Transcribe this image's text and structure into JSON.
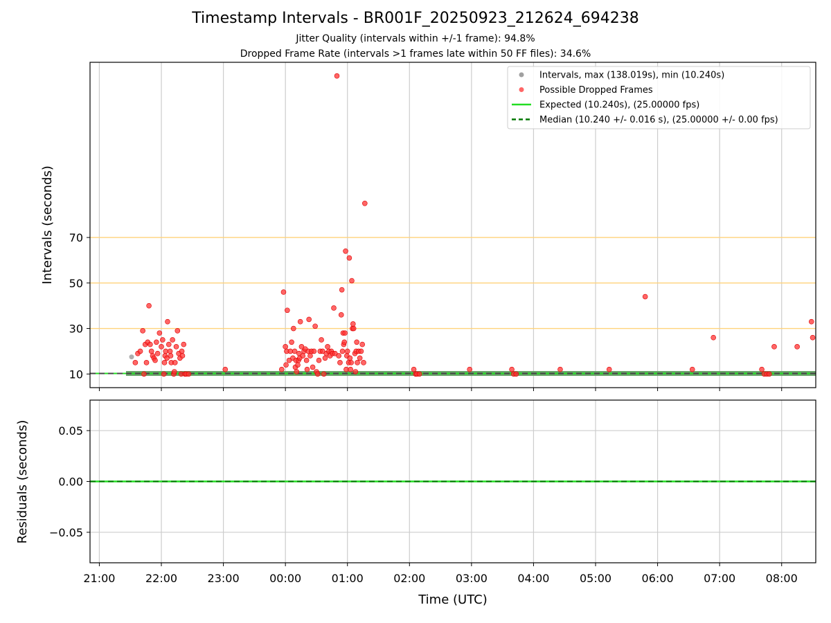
{
  "title": "Timestamp Intervals - BR001F_20250923_212624_694238",
  "subtitle_1": "Jitter Quality (intervals within +/-1 frame): 94.8%",
  "subtitle_2": "Dropped Frame Rate (intervals >1 frames late within 50 FF files): 34.6%",
  "colors": {
    "interval": "#a0a0a0",
    "dropped": "#ff3333",
    "expected": "#22dd22",
    "median": "#007700",
    "threshold": "#ffd27a",
    "grid": "#cccccc"
  },
  "chart_data": [
    {
      "type": "scatter",
      "xlabel": "",
      "ylabel": "Intervals (seconds)",
      "xlim": [
        -0.15,
        11.55
      ],
      "ylim": [
        4,
        147
      ],
      "yticks": [
        10,
        30,
        50,
        70
      ],
      "threshold_lines": [
        30,
        50,
        70
      ],
      "legend_position": "top-right",
      "legend": [
        {
          "label": "Intervals, max (138.019s), min (10.240s)",
          "kind": "gray-dot"
        },
        {
          "label": "Possible Dropped Frames",
          "kind": "red-dot"
        },
        {
          "label": "Expected (10.240s), (25.00000 fps)",
          "kind": "solid-line"
        },
        {
          "label": "Median (10.240 +/- 0.016 s), (25.00000 +/- 0.00 fps)",
          "kind": "dashed-line"
        }
      ],
      "expected": 10.24,
      "median": 10.24,
      "normal_interval_range_hours": [
        0.43,
        11.55
      ],
      "series": [
        {
          "name": "Intervals",
          "points": [
            [
              0.52,
              17.5
            ]
          ]
        },
        {
          "name": "Possible Dropped Frames",
          "points": [
            [
              0.58,
              15
            ],
            [
              0.62,
              19
            ],
            [
              0.66,
              20
            ],
            [
              0.7,
              29
            ],
            [
              0.72,
              10
            ],
            [
              0.74,
              23
            ],
            [
              0.76,
              15
            ],
            [
              0.78,
              24
            ],
            [
              0.8,
              40
            ],
            [
              0.82,
              23
            ],
            [
              0.84,
              20
            ],
            [
              0.86,
              18
            ],
            [
              0.88,
              17
            ],
            [
              0.9,
              16
            ],
            [
              0.92,
              24
            ],
            [
              0.94,
              19
            ],
            [
              0.97,
              28
            ],
            [
              1.0,
              22
            ],
            [
              1.02,
              25
            ],
            [
              1.04,
              10
            ],
            [
              1.05,
              15
            ],
            [
              1.06,
              18
            ],
            [
              1.07,
              20
            ],
            [
              1.09,
              17
            ],
            [
              1.1,
              33
            ],
            [
              1.12,
              23
            ],
            [
              1.14,
              20
            ],
            [
              1.15,
              18
            ],
            [
              1.16,
              15
            ],
            [
              1.18,
              25
            ],
            [
              1.2,
              10
            ],
            [
              1.21,
              11
            ],
            [
              1.22,
              15
            ],
            [
              1.24,
              22
            ],
            [
              1.26,
              29
            ],
            [
              1.28,
              19
            ],
            [
              1.3,
              17
            ],
            [
              1.32,
              10
            ],
            [
              1.33,
              20
            ],
            [
              1.34,
              18
            ],
            [
              1.36,
              23
            ],
            [
              1.38,
              10
            ],
            [
              1.4,
              10
            ],
            [
              1.44,
              10
            ],
            [
              2.03,
              12
            ],
            [
              2.94,
              12
            ],
            [
              2.97,
              46
            ],
            [
              3.0,
              22
            ],
            [
              3.01,
              14
            ],
            [
              3.02,
              20
            ],
            [
              3.03,
              38
            ],
            [
              3.06,
              16
            ],
            [
              3.08,
              20
            ],
            [
              3.1,
              24
            ],
            [
              3.12,
              17
            ],
            [
              3.13,
              30
            ],
            [
              3.15,
              20
            ],
            [
              3.16,
              13
            ],
            [
              3.17,
              16
            ],
            [
              3.18,
              11
            ],
            [
              3.2,
              14
            ],
            [
              3.21,
              16
            ],
            [
              3.22,
              19
            ],
            [
              3.23,
              17
            ],
            [
              3.24,
              33
            ],
            [
              3.26,
              22
            ],
            [
              3.28,
              18
            ],
            [
              3.3,
              20
            ],
            [
              3.32,
              21
            ],
            [
              3.34,
              16
            ],
            [
              3.35,
              12
            ],
            [
              3.37,
              20
            ],
            [
              3.38,
              34
            ],
            [
              3.4,
              18
            ],
            [
              3.42,
              20
            ],
            [
              3.44,
              13
            ],
            [
              3.46,
              20
            ],
            [
              3.48,
              31
            ],
            [
              3.5,
              11
            ],
            [
              3.52,
              10
            ],
            [
              3.54,
              16
            ],
            [
              3.56,
              20
            ],
            [
              3.58,
              25
            ],
            [
              3.6,
              20
            ],
            [
              3.62,
              10
            ],
            [
              3.64,
              17
            ],
            [
              3.66,
              19
            ],
            [
              3.68,
              22
            ],
            [
              3.7,
              20
            ],
            [
              3.72,
              18
            ],
            [
              3.74,
              20
            ],
            [
              3.76,
              19
            ],
            [
              3.78,
              39
            ],
            [
              3.8,
              19
            ],
            [
              3.83,
              141
            ],
            [
              3.86,
              18
            ],
            [
              3.88,
              15
            ],
            [
              3.9,
              36
            ],
            [
              3.91,
              47
            ],
            [
              3.92,
              20
            ],
            [
              3.93,
              28
            ],
            [
              3.94,
              23
            ],
            [
              3.95,
              24
            ],
            [
              3.96,
              28
            ],
            [
              3.97,
              64
            ],
            [
              3.98,
              12
            ],
            [
              3.99,
              18
            ],
            [
              4.0,
              20
            ],
            [
              4.02,
              15
            ],
            [
              4.03,
              61
            ],
            [
              4.04,
              17
            ],
            [
              4.05,
              12
            ],
            [
              4.06,
              15
            ],
            [
              4.07,
              51
            ],
            [
              4.08,
              30
            ],
            [
              4.09,
              32
            ],
            [
              4.1,
              30
            ],
            [
              4.12,
              19
            ],
            [
              4.13,
              11
            ],
            [
              4.14,
              20
            ],
            [
              4.15,
              24
            ],
            [
              4.16,
              15
            ],
            [
              4.18,
              20
            ],
            [
              4.2,
              17
            ],
            [
              4.22,
              20
            ],
            [
              4.24,
              23
            ],
            [
              4.26,
              15
            ],
            [
              4.28,
              85
            ],
            [
              5.07,
              12
            ],
            [
              5.1,
              10
            ],
            [
              5.12,
              10
            ],
            [
              5.16,
              10
            ],
            [
              5.97,
              12
            ],
            [
              6.65,
              12
            ],
            [
              6.68,
              10
            ],
            [
              6.72,
              10
            ],
            [
              7.43,
              12
            ],
            [
              8.22,
              12
            ],
            [
              8.8,
              44
            ],
            [
              9.56,
              12
            ],
            [
              9.9,
              26
            ],
            [
              10.68,
              12
            ],
            [
              10.72,
              10
            ],
            [
              10.76,
              10
            ],
            [
              10.8,
              10
            ],
            [
              10.88,
              22
            ],
            [
              11.25,
              22
            ],
            [
              11.48,
              33
            ],
            [
              11.5,
              26
            ]
          ]
        }
      ]
    },
    {
      "type": "line",
      "xlabel": "Time (UTC)",
      "ylabel": "Residuals (seconds)",
      "xlim": [
        -0.15,
        11.55
      ],
      "ylim": [
        -0.08,
        0.08
      ],
      "yticks": [
        0.05,
        0.0,
        -0.05
      ],
      "ytick_labels": [
        "0.05",
        "0.00",
        "−0.05"
      ],
      "xticks": [
        0,
        1,
        2,
        3,
        4,
        5,
        6,
        7,
        8,
        9,
        10,
        11
      ],
      "xtick_labels": [
        "21:00",
        "22:00",
        "23:00",
        "00:00",
        "01:00",
        "02:00",
        "03:00",
        "04:00",
        "05:00",
        "06:00",
        "07:00",
        "08:00"
      ],
      "residual_value": 0.0
    }
  ]
}
